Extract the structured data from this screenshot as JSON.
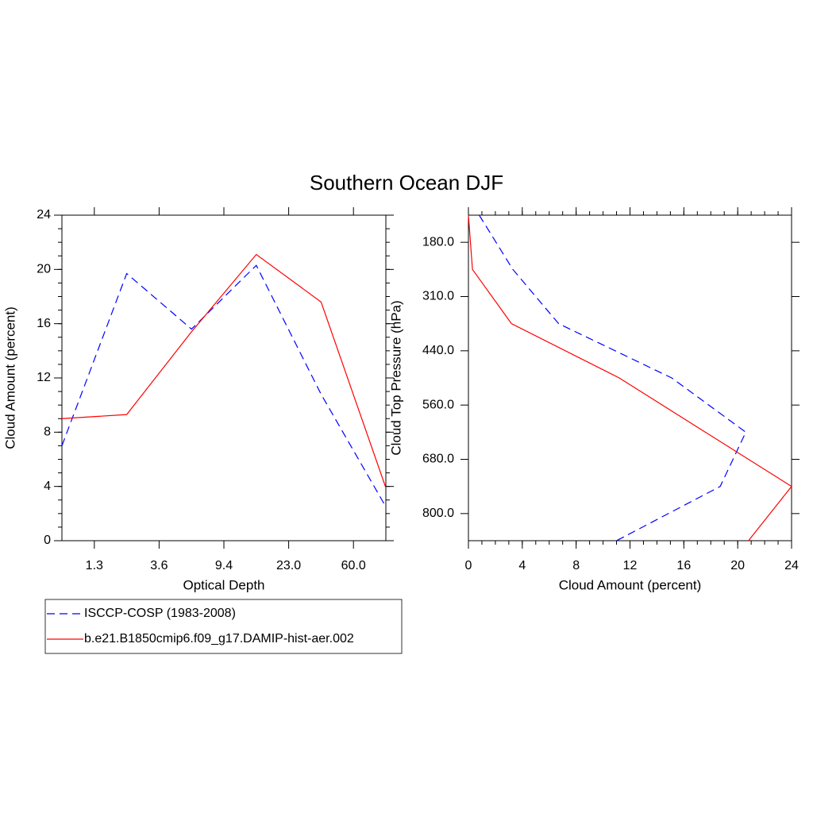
{
  "title": "Southern Ocean DJF",
  "chart_data": [
    {
      "type": "line",
      "xlabel": "Optical Depth",
      "ylabel": "Cloud Amount (percent)",
      "categories": [
        null,
        null,
        null,
        null,
        null,
        null
      ],
      "category_edge_labels": [
        "1.3",
        "3.6",
        "9.4",
        "23.0",
        "60.0"
      ],
      "ylim": [
        0,
        24
      ],
      "yticks": [
        0,
        4,
        8,
        12,
        16,
        20,
        24
      ],
      "legend": "below-left",
      "series": [
        {
          "name": "ISCCP-COSP (1983-2008)",
          "color": "#0000ff",
          "dash": "dashed",
          "values": [
            7.0,
            19.7,
            15.6,
            20.3,
            10.8,
            2.5
          ]
        },
        {
          "name": "b.e21.B1850cmip6.f09_g17.DAMIP-hist-aer.002",
          "color": "#ff0000",
          "dash": "solid",
          "values": [
            9.0,
            9.3,
            15.4,
            21.1,
            17.6,
            3.9
          ]
        }
      ]
    },
    {
      "type": "profile",
      "xlabel": "Cloud Amount (percent)",
      "ylabel": "Cloud Top Pressure (hPa)",
      "categories": [
        null,
        null,
        null,
        null,
        null,
        null,
        null
      ],
      "category_edge_labels": [
        "180.0",
        "310.0",
        "440.0",
        "560.0",
        "680.0",
        "800.0"
      ],
      "xlim": [
        0,
        24
      ],
      "xticks": [
        0,
        4,
        8,
        12,
        16,
        20,
        24
      ],
      "series": [
        {
          "color": "#0000ff",
          "dash": "dashed",
          "values": [
            0.8,
            3.3,
            6.7,
            15.1,
            20.6,
            18.7,
            11.0
          ]
        },
        {
          "color": "#ff0000",
          "dash": "solid",
          "values": [
            0.0,
            0.3,
            3.2,
            11.2,
            17.6,
            24.0,
            20.8
          ]
        }
      ]
    }
  ]
}
